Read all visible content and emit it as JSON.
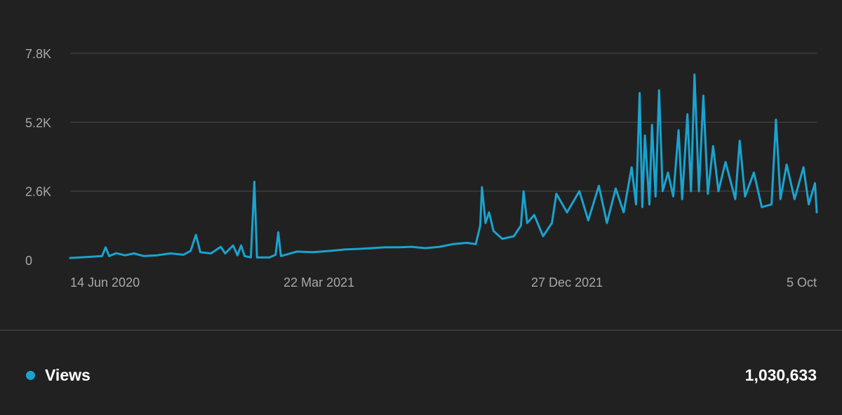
{
  "colors": {
    "background": "#212121",
    "series": "#1aa3cf",
    "grid": "#3d3d3d",
    "tick_text": "#a8a8a8",
    "text": "#ffffff"
  },
  "chart_data": {
    "type": "line",
    "title": "",
    "xlabel": "",
    "ylabel": "",
    "ylim": [
      0,
      7800
    ],
    "yticks": [
      0,
      2600,
      5200,
      7800
    ],
    "ytick_labels": [
      "0",
      "2.6K",
      "5.2K",
      "7.8K"
    ],
    "xticks": [
      "2020-06-14",
      "2021-03-22",
      "2021-12-27",
      "2022-10-05"
    ],
    "xtick_labels": [
      "14 Jun 2020",
      "22 Mar 2021",
      "27 Dec 2021",
      "5 Oct"
    ],
    "xlim": [
      "2020-06-14",
      "2022-10-05"
    ],
    "grid": true,
    "legend_position": "bottom-left",
    "series": [
      {
        "name": "Views",
        "color": "#1aa3cf",
        "total": "1,030,633",
        "points": [
          [
            "2020-06-14",
            80
          ],
          [
            "2020-07-05",
            120
          ],
          [
            "2020-07-20",
            150
          ],
          [
            "2020-07-24",
            480
          ],
          [
            "2020-07-28",
            150
          ],
          [
            "2020-08-05",
            260
          ],
          [
            "2020-08-15",
            180
          ],
          [
            "2020-08-25",
            250
          ],
          [
            "2020-09-05",
            150
          ],
          [
            "2020-09-20",
            180
          ],
          [
            "2020-10-05",
            250
          ],
          [
            "2020-10-20",
            200
          ],
          [
            "2020-10-28",
            350
          ],
          [
            "2020-11-03",
            950
          ],
          [
            "2020-11-08",
            300
          ],
          [
            "2020-11-20",
            250
          ],
          [
            "2020-12-01",
            500
          ],
          [
            "2020-12-06",
            250
          ],
          [
            "2020-12-15",
            550
          ],
          [
            "2020-12-20",
            180
          ],
          [
            "2020-12-24",
            550
          ],
          [
            "2020-12-28",
            150
          ],
          [
            "2021-01-04",
            100
          ],
          [
            "2021-01-08",
            2950
          ],
          [
            "2021-01-11",
            100
          ],
          [
            "2021-01-25",
            100
          ],
          [
            "2021-02-01",
            200
          ],
          [
            "2021-02-04",
            1050
          ],
          [
            "2021-02-07",
            150
          ],
          [
            "2021-02-25",
            320
          ],
          [
            "2021-03-15",
            300
          ],
          [
            "2021-04-05",
            350
          ],
          [
            "2021-04-20",
            400
          ],
          [
            "2021-05-05",
            420
          ],
          [
            "2021-05-20",
            450
          ],
          [
            "2021-06-05",
            480
          ],
          [
            "2021-06-20",
            480
          ],
          [
            "2021-07-05",
            500
          ],
          [
            "2021-07-20",
            450
          ],
          [
            "2021-08-05",
            500
          ],
          [
            "2021-08-20",
            600
          ],
          [
            "2021-09-05",
            650
          ],
          [
            "2021-09-15",
            600
          ],
          [
            "2021-09-20",
            1300
          ],
          [
            "2021-09-22",
            2750
          ],
          [
            "2021-09-26",
            1400
          ],
          [
            "2021-09-30",
            1800
          ],
          [
            "2021-10-05",
            1100
          ],
          [
            "2021-10-15",
            800
          ],
          [
            "2021-10-28",
            900
          ],
          [
            "2021-11-05",
            1300
          ],
          [
            "2021-11-08",
            2600
          ],
          [
            "2021-11-12",
            1400
          ],
          [
            "2021-11-20",
            1700
          ],
          [
            "2021-11-30",
            900
          ],
          [
            "2021-12-10",
            1400
          ],
          [
            "2021-12-15",
            2500
          ],
          [
            "2021-12-27",
            1800
          ],
          [
            "2022-01-10",
            2600
          ],
          [
            "2022-01-20",
            1500
          ],
          [
            "2022-02-01",
            2800
          ],
          [
            "2022-02-10",
            1400
          ],
          [
            "2022-02-20",
            2700
          ],
          [
            "2022-03-01",
            1800
          ],
          [
            "2022-03-10",
            3500
          ],
          [
            "2022-03-15",
            2100
          ],
          [
            "2022-03-19",
            6300
          ],
          [
            "2022-03-22",
            2000
          ],
          [
            "2022-03-25",
            4700
          ],
          [
            "2022-03-30",
            2100
          ],
          [
            "2022-04-02",
            5100
          ],
          [
            "2022-04-06",
            2400
          ],
          [
            "2022-04-10",
            6400
          ],
          [
            "2022-04-14",
            2600
          ],
          [
            "2022-04-20",
            3300
          ],
          [
            "2022-04-26",
            2400
          ],
          [
            "2022-05-02",
            4900
          ],
          [
            "2022-05-06",
            2300
          ],
          [
            "2022-05-12",
            5500
          ],
          [
            "2022-05-16",
            2600
          ],
          [
            "2022-05-20",
            7000
          ],
          [
            "2022-05-25",
            2600
          ],
          [
            "2022-05-30",
            6200
          ],
          [
            "2022-06-04",
            2500
          ],
          [
            "2022-06-10",
            4300
          ],
          [
            "2022-06-16",
            2600
          ],
          [
            "2022-06-24",
            3700
          ],
          [
            "2022-07-05",
            2300
          ],
          [
            "2022-07-10",
            4500
          ],
          [
            "2022-07-16",
            2400
          ],
          [
            "2022-07-26",
            3300
          ],
          [
            "2022-08-04",
            2000
          ],
          [
            "2022-08-15",
            2100
          ],
          [
            "2022-08-20",
            5300
          ],
          [
            "2022-08-25",
            2300
          ],
          [
            "2022-09-01",
            3600
          ],
          [
            "2022-09-10",
            2300
          ],
          [
            "2022-09-20",
            3500
          ],
          [
            "2022-09-26",
            2100
          ],
          [
            "2022-10-03",
            2900
          ],
          [
            "2022-10-05",
            1800
          ]
        ]
      }
    ]
  }
}
